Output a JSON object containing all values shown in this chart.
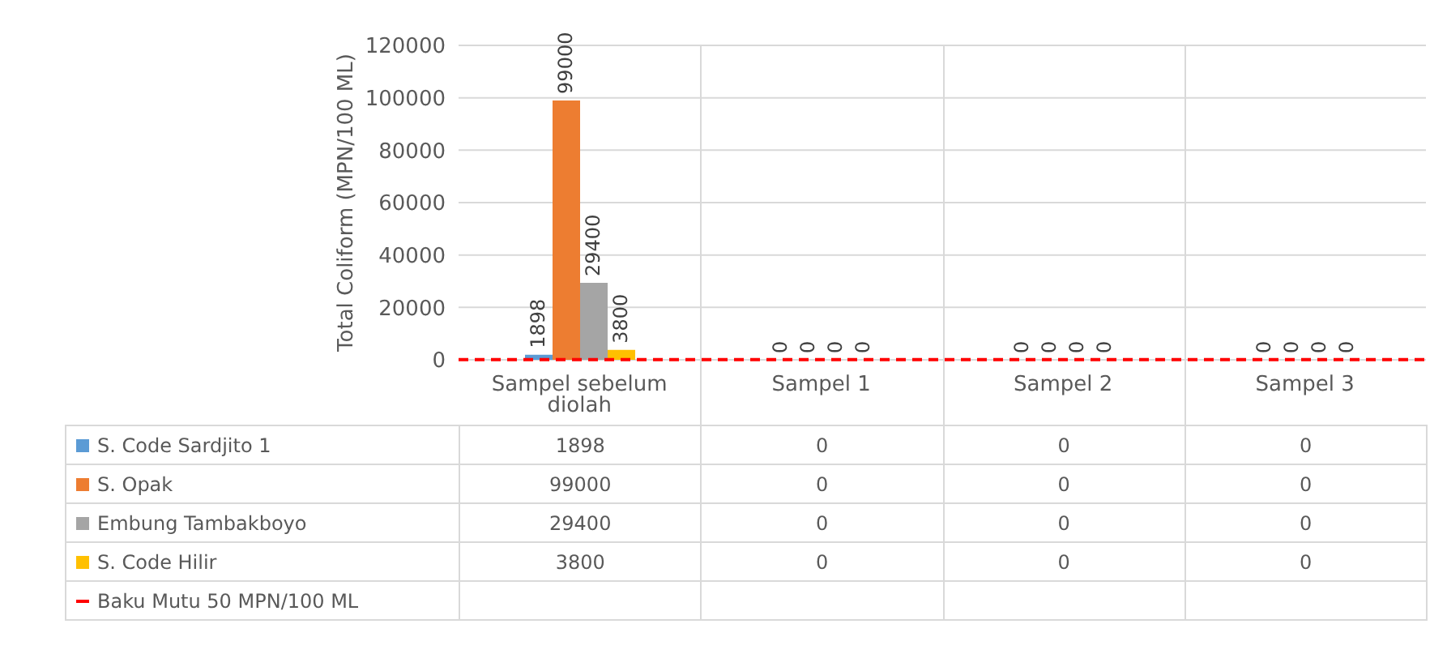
{
  "chart_data": {
    "type": "bar",
    "ylabel": "Total Coliform (MPN/100 ML)",
    "categories": [
      "Sampel sebelum diolah",
      "Sampel 1",
      "Sampel 2",
      "Sampel 3"
    ],
    "series": [
      {
        "name": "S. Code Sardjito 1",
        "color": "#5b9bd5",
        "values": [
          1898,
          0,
          0,
          0
        ],
        "value_labels": [
          "1898",
          "0",
          "0",
          "0"
        ]
      },
      {
        "name": "S. Opak",
        "color": "#ed7d31",
        "values": [
          99000,
          0,
          0,
          0
        ],
        "value_labels": [
          "99000",
          "0",
          "0",
          "0"
        ]
      },
      {
        "name": "Embung Tambakboyo",
        "color": "#a5a5a5",
        "values": [
          29400,
          0,
          0,
          0
        ],
        "value_labels": [
          "29400",
          "0",
          "0",
          "0"
        ]
      },
      {
        "name": "S. Code Hilir",
        "color": "#ffc000",
        "values": [
          3800,
          0,
          0,
          0
        ],
        "value_labels": [
          "3800",
          "0",
          "0",
          "0"
        ]
      }
    ],
    "ylim": [
      0,
      120000
    ],
    "yticks": [
      0,
      20000,
      40000,
      60000,
      80000,
      100000,
      120000
    ],
    "ref_lines": [
      {
        "axis": "y",
        "value": 50,
        "label": "Baku Mutu 50 MPN/100 ML",
        "color": "#ff0000",
        "line_style": "dashed"
      }
    ],
    "grid": true,
    "legend": "bottom"
  }
}
